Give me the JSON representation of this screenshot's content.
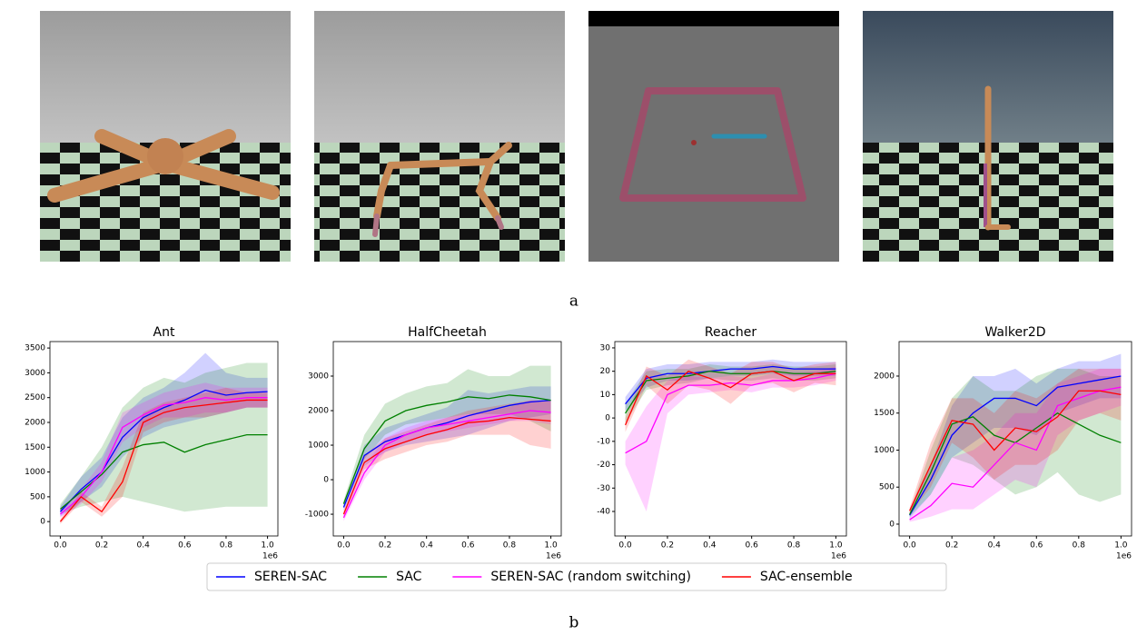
{
  "figure": {
    "panel_a_label": "a",
    "panel_b_label": "b"
  },
  "legend": [
    {
      "name": "SEREN-SAC",
      "color": "#0000ff"
    },
    {
      "name": "SAC",
      "color": "#008000"
    },
    {
      "name": "SEREN-SAC (random switching)",
      "color": "#ff00ff"
    },
    {
      "name": "SAC-ensemble",
      "color": "#ff0000"
    }
  ],
  "chart_data": [
    {
      "type": "line",
      "title": "Ant",
      "x": [
        0,
        0.1,
        0.2,
        0.3,
        0.4,
        0.5,
        0.6,
        0.7,
        0.8,
        0.9,
        1.0
      ],
      "xlim": [
        -0.05,
        1.05
      ],
      "xticks": [
        {
          "value": 0,
          "label": "0.0"
        },
        0.2,
        0.4,
        0.6,
        0.8,
        {
          "value": 1,
          "label": "1.0"
        }
      ],
      "x_offset_label": "1e6",
      "ylim": [
        -290,
        3630
      ],
      "yticks": [
        0,
        500,
        1000,
        1500,
        2000,
        2500,
        3000,
        3500
      ],
      "series": [
        {
          "color": "#0000ff",
          "values": [
            200,
            650,
            1000,
            1700,
            2100,
            2300,
            2450,
            2650,
            2550,
            2600,
            2620
          ],
          "lower": [
            100,
            400,
            700,
            1300,
            1700,
            1900,
            2000,
            2100,
            2200,
            2300,
            2300
          ],
          "upper": [
            300,
            900,
            1300,
            2100,
            2500,
            2700,
            3000,
            3400,
            3000,
            2900,
            2900
          ]
        },
        {
          "color": "#008000",
          "values": [
            250,
            600,
            950,
            1400,
            1550,
            1600,
            1400,
            1550,
            1650,
            1750,
            1750
          ],
          "lower": [
            150,
            300,
            400,
            500,
            400,
            300,
            200,
            250,
            300,
            300,
            300
          ],
          "upper": [
            350,
            900,
            1500,
            2300,
            2700,
            2900,
            2800,
            3000,
            3100,
            3200,
            3200
          ]
        },
        {
          "color": "#ff00ff",
          "values": [
            150,
            500,
            1000,
            1900,
            2150,
            2350,
            2400,
            2500,
            2450,
            2500,
            2500
          ],
          "lower": [
            80,
            350,
            800,
            1600,
            1900,
            2100,
            2100,
            2200,
            2200,
            2300,
            2300
          ],
          "upper": [
            250,
            650,
            1200,
            2200,
            2400,
            2600,
            2700,
            2800,
            2700,
            2700,
            2700
          ]
        },
        {
          "color": "#ff0000",
          "values": [
            0,
            500,
            200,
            800,
            2000,
            2200,
            2300,
            2350,
            2400,
            2450,
            2450
          ],
          "lower": [
            -50,
            400,
            100,
            500,
            1800,
            2000,
            2100,
            2100,
            2200,
            2300,
            2300
          ],
          "upper": [
            50,
            600,
            300,
            1100,
            2200,
            2400,
            2500,
            2600,
            2700,
            2600,
            2600
          ]
        }
      ]
    },
    {
      "type": "line",
      "title": "HalfCheetah",
      "x": [
        0,
        0.1,
        0.2,
        0.3,
        0.4,
        0.5,
        0.6,
        0.7,
        0.8,
        0.9,
        1.0
      ],
      "xlim": [
        -0.05,
        1.05
      ],
      "xticks": [
        {
          "value": 0,
          "label": "0.0"
        },
        0.2,
        0.4,
        0.6,
        0.8,
        {
          "value": 1,
          "label": "1.0"
        }
      ],
      "x_offset_label": "1e6",
      "ylim": [
        -1630,
        4000
      ],
      "yticks": [
        -1000,
        0,
        1000,
        2000,
        3000
      ],
      "series": [
        {
          "color": "#0000ff",
          "values": [
            -800,
            700,
            1100,
            1300,
            1500,
            1650,
            1850,
            2000,
            2150,
            2250,
            2300
          ],
          "lower": [
            -900,
            400,
            800,
            1000,
            1100,
            1200,
            1300,
            1500,
            1700,
            1800,
            1900
          ],
          "upper": [
            -700,
            1000,
            1500,
            1700,
            1900,
            2100,
            2600,
            2500,
            2600,
            2700,
            2700
          ]
        },
        {
          "color": "#008000",
          "values": [
            -700,
            900,
            1700,
            2000,
            2150,
            2250,
            2400,
            2350,
            2450,
            2400,
            2300
          ],
          "lower": [
            -800,
            600,
            1300,
            1600,
            1700,
            1800,
            1900,
            1900,
            1900,
            1700,
            1400
          ],
          "upper": [
            -600,
            1300,
            2200,
            2500,
            2700,
            2800,
            3200,
            3000,
            3000,
            3300,
            3300
          ]
        },
        {
          "color": "#ff00ff",
          "values": [
            -1100,
            200,
            1000,
            1300,
            1500,
            1600,
            1700,
            1800,
            1900,
            2000,
            1950
          ],
          "lower": [
            -1200,
            0,
            800,
            1100,
            1300,
            1400,
            1500,
            1600,
            1700,
            1700,
            1600
          ],
          "upper": [
            -1000,
            400,
            1200,
            1500,
            1700,
            1800,
            1900,
            2000,
            2100,
            2300,
            2300
          ]
        },
        {
          "color": "#ff0000",
          "values": [
            -1000,
            500,
            900,
            1100,
            1300,
            1450,
            1650,
            1700,
            1800,
            1750,
            1700
          ],
          "lower": [
            -1100,
            300,
            600,
            800,
            1000,
            1100,
            1300,
            1300,
            1300,
            1000,
            900
          ],
          "upper": [
            -900,
            700,
            1200,
            1400,
            1600,
            1800,
            2000,
            2100,
            2200,
            2300,
            2300
          ]
        }
      ]
    },
    {
      "type": "line",
      "title": "Reacher",
      "x": [
        0,
        0.1,
        0.2,
        0.3,
        0.4,
        0.5,
        0.6,
        0.7,
        0.8,
        0.9,
        1.0
      ],
      "xlim": [
        -0.05,
        1.05
      ],
      "xticks": [
        {
          "value": 0,
          "label": "0.0"
        },
        0.2,
        0.4,
        0.6,
        0.8,
        {
          "value": 1,
          "label": "1.0"
        }
      ],
      "x_offset_label": "1e6",
      "ylim": [
        -50.5,
        32.7
      ],
      "yticks": [
        -40,
        -30,
        -20,
        -10,
        0,
        10,
        20,
        30
      ],
      "series": [
        {
          "color": "#0000ff",
          "values": [
            6,
            17,
            19,
            19,
            20,
            21,
            21,
            22,
            21,
            21,
            21
          ],
          "lower": [
            3,
            13,
            16,
            16,
            17,
            18,
            18,
            19,
            18,
            18,
            18
          ],
          "upper": [
            9,
            21,
            23,
            23,
            24,
            24,
            24,
            25,
            24,
            24,
            24
          ]
        },
        {
          "color": "#008000",
          "values": [
            2,
            16,
            17,
            18,
            20,
            19,
            19,
            20,
            19,
            19,
            20
          ],
          "lower": [
            -2,
            12,
            14,
            15,
            17,
            16,
            16,
            17,
            16,
            16,
            17
          ],
          "upper": [
            6,
            20,
            21,
            21,
            23,
            22,
            22,
            23,
            22,
            22,
            23
          ]
        },
        {
          "color": "#ff00ff",
          "values": [
            -15,
            -10,
            10,
            14,
            14,
            15,
            14,
            16,
            16,
            17,
            19
          ],
          "lower": [
            -20,
            -40,
            2,
            10,
            11,
            12,
            11,
            13,
            13,
            14,
            16
          ],
          "upper": [
            -10,
            5,
            16,
            18,
            17,
            18,
            17,
            19,
            19,
            20,
            22
          ]
        },
        {
          "color": "#ff0000",
          "values": [
            -3,
            18,
            12,
            20,
            17,
            13,
            19,
            20,
            16,
            19,
            19
          ],
          "lower": [
            -6,
            14,
            6,
            14,
            12,
            6,
            14,
            15,
            11,
            15,
            14
          ],
          "upper": [
            0,
            22,
            18,
            25,
            22,
            19,
            24,
            24,
            21,
            23,
            24
          ]
        }
      ]
    },
    {
      "type": "line",
      "title": "Walker2D",
      "x": [
        0,
        0.1,
        0.2,
        0.3,
        0.4,
        0.5,
        0.6,
        0.7,
        0.8,
        0.9,
        1.0
      ],
      "xlim": [
        -0.05,
        1.05
      ],
      "xticks": [
        {
          "value": 0,
          "label": "0.0"
        },
        0.2,
        0.4,
        0.6,
        0.8,
        {
          "value": 1,
          "label": "1.0"
        }
      ],
      "x_offset_label": "1e6",
      "ylim": [
        -160,
        2466
      ],
      "yticks": [
        0,
        500,
        1000,
        1500,
        2000
      ],
      "series": [
        {
          "color": "#0000ff",
          "values": [
            120,
            600,
            1200,
            1500,
            1700,
            1700,
            1600,
            1850,
            1900,
            1950,
            2000
          ],
          "lower": [
            80,
            400,
            900,
            1100,
            1300,
            1300,
            1200,
            1500,
            1600,
            1700,
            1700
          ],
          "upper": [
            160,
            800,
            1600,
            2000,
            2000,
            2100,
            1900,
            2100,
            2200,
            2200,
            2300
          ]
        },
        {
          "color": "#008000",
          "values": [
            130,
            700,
            1350,
            1450,
            1200,
            1100,
            1300,
            1500,
            1350,
            1200,
            1100
          ],
          "lower": [
            100,
            400,
            900,
            800,
            600,
            400,
            500,
            700,
            400,
            300,
            400
          ],
          "upper": [
            160,
            1000,
            1700,
            2000,
            1800,
            1800,
            2000,
            2100,
            2100,
            2000,
            2000
          ]
        },
        {
          "color": "#ff00ff",
          "values": [
            60,
            250,
            550,
            500,
            800,
            1100,
            1000,
            1600,
            1700,
            1800,
            1850
          ],
          "lower": [
            30,
            100,
            200,
            200,
            400,
            600,
            500,
            1200,
            1400,
            1500,
            1600
          ],
          "upper": [
            90,
            400,
            900,
            1000,
            1200,
            1500,
            1500,
            1900,
            2000,
            2100,
            2100
          ]
        },
        {
          "color": "#ff0000",
          "values": [
            180,
            800,
            1400,
            1350,
            1000,
            1300,
            1250,
            1450,
            1800,
            1800,
            1750
          ],
          "lower": [
            140,
            500,
            1100,
            900,
            600,
            800,
            800,
            1000,
            1400,
            1500,
            1400
          ],
          "upper": [
            220,
            1100,
            1700,
            1700,
            1500,
            1800,
            1700,
            1900,
            2100,
            2100,
            2100
          ]
        }
      ]
    }
  ]
}
